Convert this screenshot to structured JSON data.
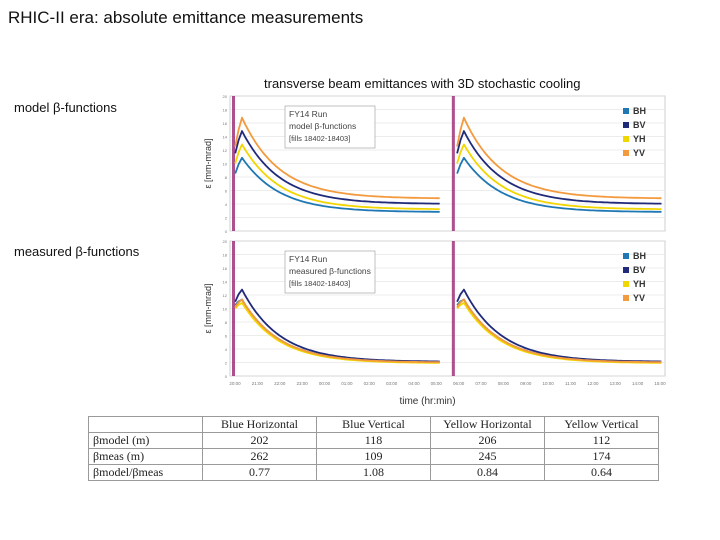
{
  "slide_title": "RHIC-II era: absolute emittance measurements",
  "caption": "transverse beam emittances with 3D stochastic cooling",
  "row_labels": [
    "model β-functions",
    "measured  β-functions"
  ],
  "colors": {
    "BH": "#1f77b4",
    "BV": "#1f2a7a",
    "YH": "#f2d600",
    "YV": "#f39a3e",
    "marker": "#a0307a",
    "grid": "#d9d9d9"
  },
  "chart_data": [
    {
      "type": "line",
      "title": "FY14 Run",
      "subtitle": "model β-functions",
      "note": "[fills 18402-18403]",
      "ylabel": "ε [mm-mrad]",
      "xlabel": "time (hr:min)",
      "ylim": [
        0,
        20
      ],
      "y_ticks": [
        "20",
        "18",
        "16",
        "14",
        "12",
        "10",
        "8",
        "6",
        "4",
        "2",
        "0"
      ],
      "legend": [
        "BH",
        "BV",
        "YH",
        "YV"
      ],
      "fills": [
        {
          "start": 0.0,
          "end": 0.49
        },
        {
          "start": 0.51,
          "end": 1.0
        }
      ],
      "series": [
        {
          "name": "BH",
          "start": 8.5,
          "peak": 11.0,
          "end": 2.8
        },
        {
          "name": "BV",
          "start": 11.5,
          "peak": 15.0,
          "end": 4.0
        },
        {
          "name": "YH",
          "start": 10.0,
          "peak": 13.0,
          "end": 3.2
        },
        {
          "name": "YV",
          "start": 12.5,
          "peak": 17.0,
          "end": 4.8
        }
      ]
    },
    {
      "type": "line",
      "title": "FY14 Run",
      "subtitle": "measured β-functions",
      "note": "[fills 18402-18403]",
      "ylabel": "ε [mm-mrad]",
      "xlabel": "time (hr:min)",
      "ylim": [
        0,
        20
      ],
      "y_ticks": [
        "20",
        "18",
        "16",
        "14",
        "12",
        "10",
        "8",
        "6",
        "4",
        "2",
        "0"
      ],
      "legend": [
        "BH",
        "BV",
        "YH",
        "YV"
      ],
      "fills": [
        {
          "start": 0.0,
          "end": 0.49
        },
        {
          "start": 0.51,
          "end": 1.0
        }
      ],
      "series": [
        {
          "name": "BH",
          "start": 10.5,
          "peak": 11.5,
          "end": 2.0
        },
        {
          "name": "BV",
          "start": 11.0,
          "peak": 13.0,
          "end": 2.1
        },
        {
          "name": "YH",
          "start": 10.0,
          "peak": 11.0,
          "end": 1.9
        },
        {
          "name": "YV",
          "start": 10.2,
          "peak": 11.5,
          "end": 2.0
        }
      ],
      "x_ticks": [
        "20:00",
        "21:00",
        "22:00",
        "23:00",
        "00:00",
        "01:00",
        "02:00",
        "03:00",
        "04:00",
        "05:00",
        "06:00",
        "07:00",
        "08:00",
        "09:00",
        "10:00",
        "11:00",
        "12:00",
        "13:00",
        "14:00",
        "15:00"
      ]
    }
  ],
  "table": {
    "headers": [
      "",
      "Blue Horizontal",
      "Blue Vertical",
      "Yellow Horizontal",
      "Yellow Vertical"
    ],
    "rows": [
      {
        "label": "βmodel (m)",
        "values": [
          "202",
          "118",
          "206",
          "112"
        ]
      },
      {
        "label": "βmeas (m)",
        "values": [
          "262",
          "109",
          "245",
          "174"
        ]
      },
      {
        "label": "βmodel/βmeas",
        "values": [
          "0.77",
          "1.08",
          "0.84",
          "0.64"
        ]
      }
    ]
  }
}
